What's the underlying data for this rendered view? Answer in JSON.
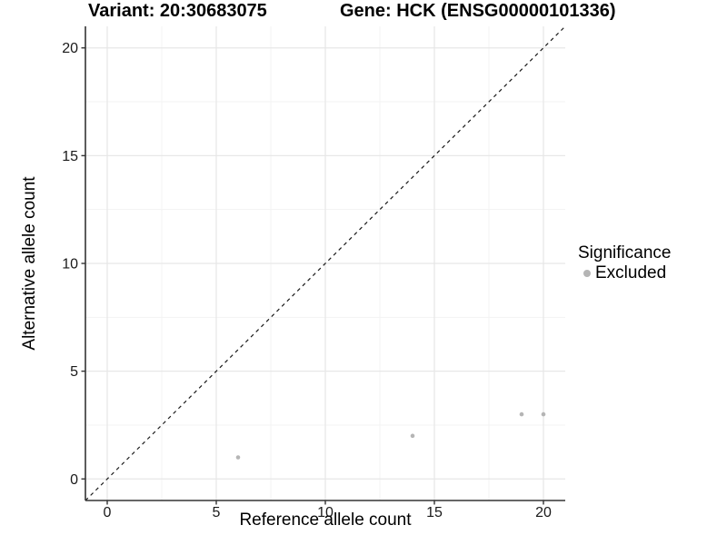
{
  "header": {
    "variant_title": "Variant: 20:30683075",
    "gene_title": "Gene: HCK (ENSG00000101336)"
  },
  "chart_data": {
    "type": "scatter",
    "title": "Variant: 20:30683075    Gene: HCK (ENSG00000101336)",
    "xlabel": "Reference allele count",
    "ylabel": "Alternative allele count",
    "xlim": [
      -1,
      21
    ],
    "ylim": [
      -1,
      21
    ],
    "x_ticks": [
      0,
      5,
      10,
      15,
      20
    ],
    "y_ticks": [
      0,
      5,
      10,
      15,
      20
    ],
    "x_minor_ticks": [
      2.5,
      7.5,
      12.5,
      17.5
    ],
    "y_minor_ticks": [
      2.5,
      7.5,
      12.5,
      17.5
    ],
    "grid": "major and minor, on white background",
    "legend_position": "right",
    "series": [
      {
        "name": "Excluded",
        "marker": "circle",
        "color": "#b5b5b5",
        "points": [
          [
            6,
            1
          ],
          [
            14,
            2
          ],
          [
            19,
            3
          ],
          [
            20,
            3
          ]
        ]
      }
    ],
    "reference_line": {
      "type": "identity (y = x)",
      "style": "dashed",
      "from": [
        -1,
        -1
      ],
      "to": [
        21,
        21
      ],
      "color": "#1a1a1a"
    },
    "legend": {
      "title": "Significance",
      "items": [
        {
          "label": "Excluded",
          "color": "#b5b5b5",
          "marker": "circle"
        }
      ]
    },
    "colors": {
      "point": "#b5b5b5",
      "grid_major": "#e7e7e7",
      "grid_minor": "#f3f3f3",
      "axis_line": "#333333",
      "tick_text": "#1a1a1a",
      "title_text": "#000000",
      "background": "#ffffff"
    }
  }
}
